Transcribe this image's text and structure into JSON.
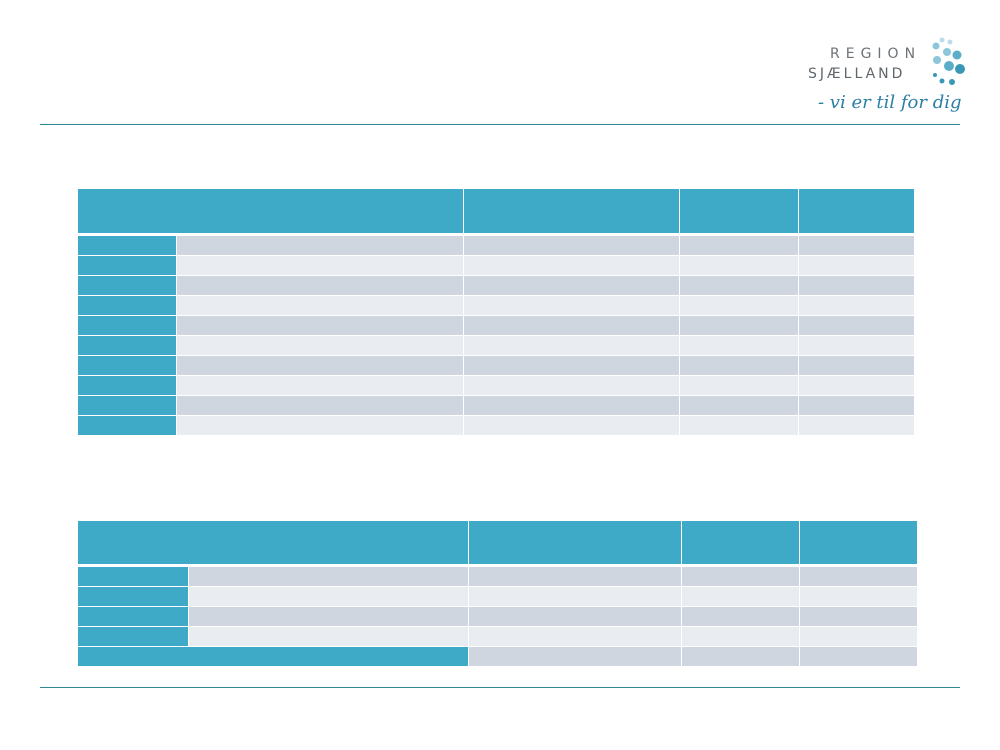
{
  "logo": {
    "line1": "REGION",
    "line2": "SJÆLLAND",
    "tagline": "- vi er til for dig",
    "dot_colors": [
      "#bcdde8",
      "#8cc6d8",
      "#5cadc7",
      "#3a97b6"
    ]
  },
  "colors": {
    "header_fill": "#3faac8",
    "row_odd": "#cfd6df",
    "row_even": "#e9ecf1",
    "rule": "#2e8b96"
  },
  "table1": {
    "header": [
      "",
      "",
      "",
      ""
    ],
    "rows": [
      [
        "",
        "",
        "",
        "",
        ""
      ],
      [
        "",
        "",
        "",
        "",
        ""
      ],
      [
        "",
        "",
        "",
        "",
        ""
      ],
      [
        "",
        "",
        "",
        "",
        ""
      ],
      [
        "",
        "",
        "",
        "",
        ""
      ],
      [
        "",
        "",
        "",
        "",
        ""
      ],
      [
        "",
        "",
        "",
        "",
        ""
      ],
      [
        "",
        "",
        "",
        "",
        ""
      ],
      [
        "",
        "",
        "",
        "",
        ""
      ],
      [
        "",
        "",
        "",
        "",
        ""
      ]
    ]
  },
  "table2": {
    "header": [
      "",
      "",
      "",
      ""
    ],
    "rows": [
      [
        "",
        "",
        "",
        "",
        ""
      ],
      [
        "",
        "",
        "",
        "",
        ""
      ],
      [
        "",
        "",
        "",
        "",
        ""
      ],
      [
        "",
        "",
        "",
        "",
        ""
      ]
    ],
    "total": [
      "",
      "",
      "",
      ""
    ]
  }
}
